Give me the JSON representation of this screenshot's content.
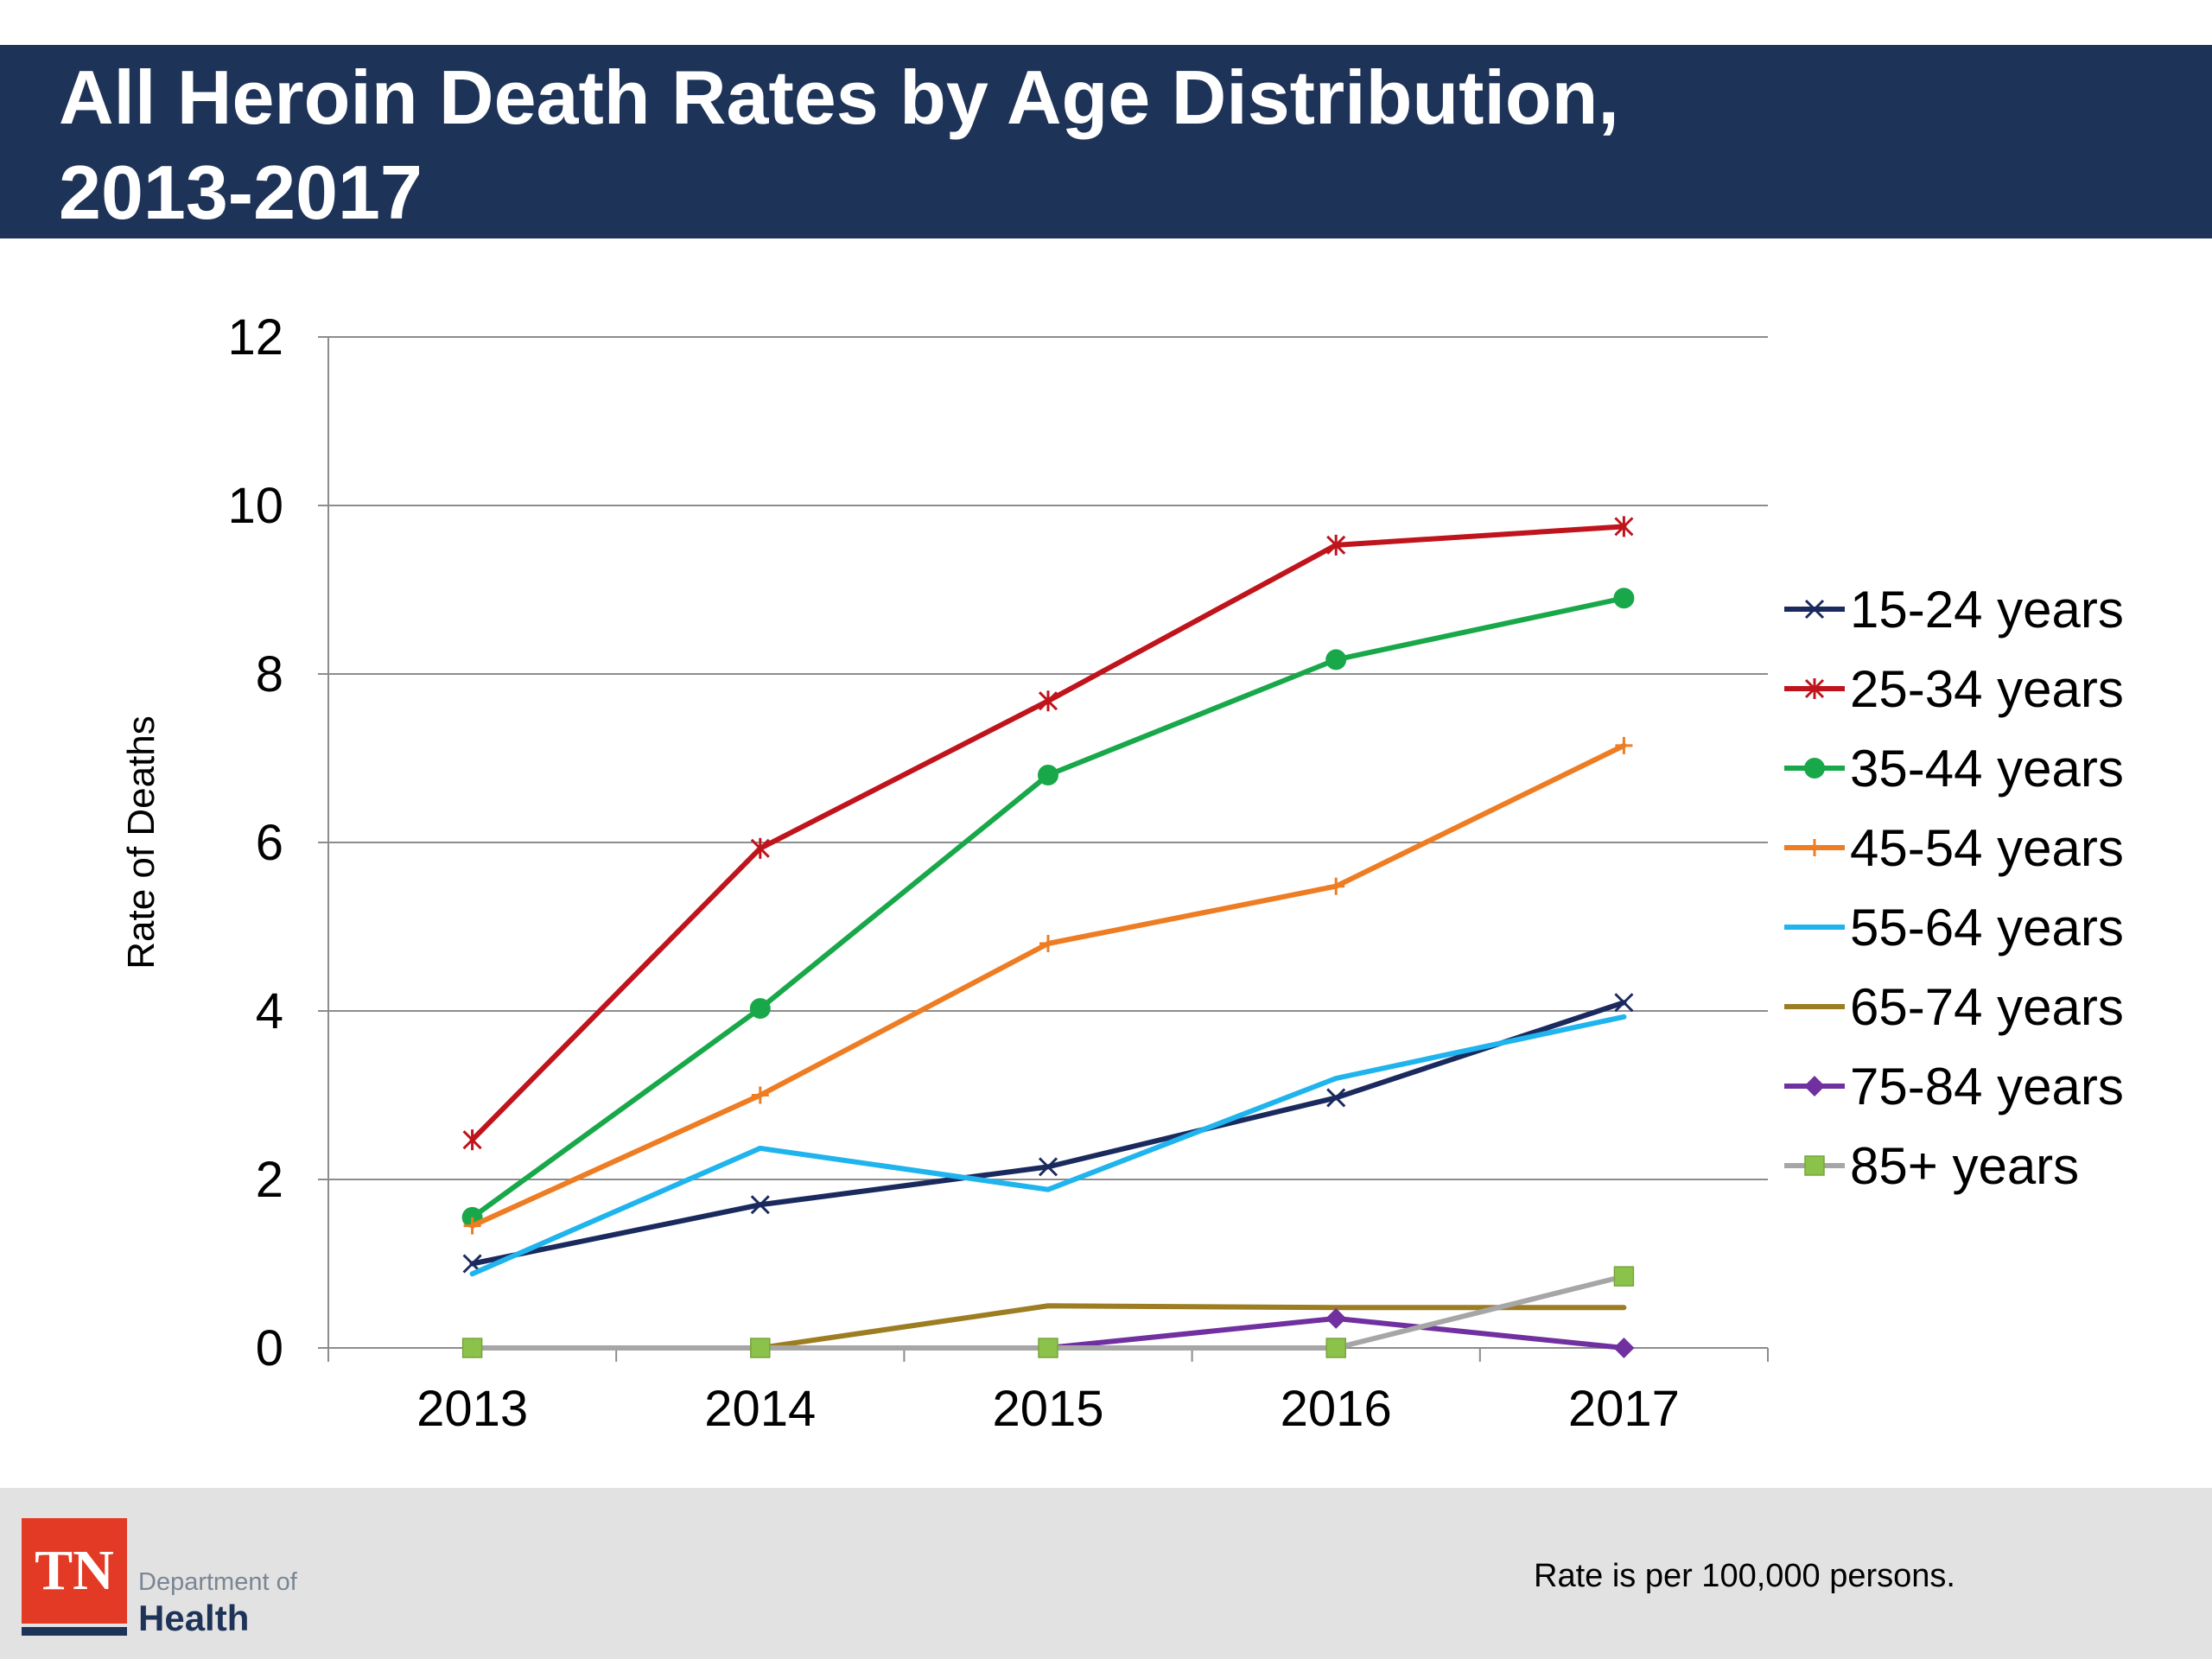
{
  "slide": {
    "title": "All Heroin Death Rates by Age Distribution,\n2013-2017",
    "footnote": "Rate is per 100,000 persons.",
    "logo": {
      "abbr": "TN",
      "line1": "Department of",
      "line2": "Health"
    },
    "colors": {
      "header": "#1e3358",
      "footer": "#e2e2e2",
      "logo_red": "#e33a25"
    }
  },
  "chart_data": {
    "type": "line",
    "title": "",
    "xlabel": "",
    "ylabel": "Rate of Deaths",
    "categories": [
      "2013",
      "2014",
      "2015",
      "2016",
      "2017"
    ],
    "ylim": [
      0,
      12
    ],
    "yticks": [
      0,
      2,
      4,
      6,
      8,
      10,
      12
    ],
    "grid": true,
    "legend": "right",
    "series": [
      {
        "name": "15-24 years",
        "color": "#1b2a5e",
        "marker": "x",
        "values": [
          1.0,
          1.7,
          2.15,
          2.97,
          4.1
        ]
      },
      {
        "name": "25-34 years",
        "color": "#c0141c",
        "marker": "asterisk",
        "values": [
          2.47,
          5.93,
          7.68,
          9.53,
          9.75
        ]
      },
      {
        "name": "35-44 years",
        "color": "#18a84a",
        "marker": "circle",
        "values": [
          1.55,
          4.03,
          6.8,
          8.17,
          8.9
        ]
      },
      {
        "name": "45-54 years",
        "color": "#ee7c22",
        "marker": "plus",
        "values": [
          1.45,
          3.0,
          4.8,
          5.48,
          7.15
        ]
      },
      {
        "name": "55-64 years",
        "color": "#1fb4ed",
        "marker": "dash",
        "values": [
          0.88,
          2.37,
          1.88,
          3.2,
          3.93
        ]
      },
      {
        "name": "65-74 years",
        "color": "#9c7d22",
        "marker": "dash",
        "values": [
          0,
          0,
          0.5,
          0.48,
          0.48
        ]
      },
      {
        "name": "75-84 years",
        "color": "#7030a0",
        "marker": "diamond",
        "values": [
          0,
          0,
          0,
          0.35,
          0
        ]
      },
      {
        "name": "85+ years",
        "color": "#a6a6a6",
        "marker": "square",
        "marker_color": "#8bc34a",
        "values": [
          0,
          0,
          0,
          0,
          0.85
        ]
      }
    ]
  }
}
